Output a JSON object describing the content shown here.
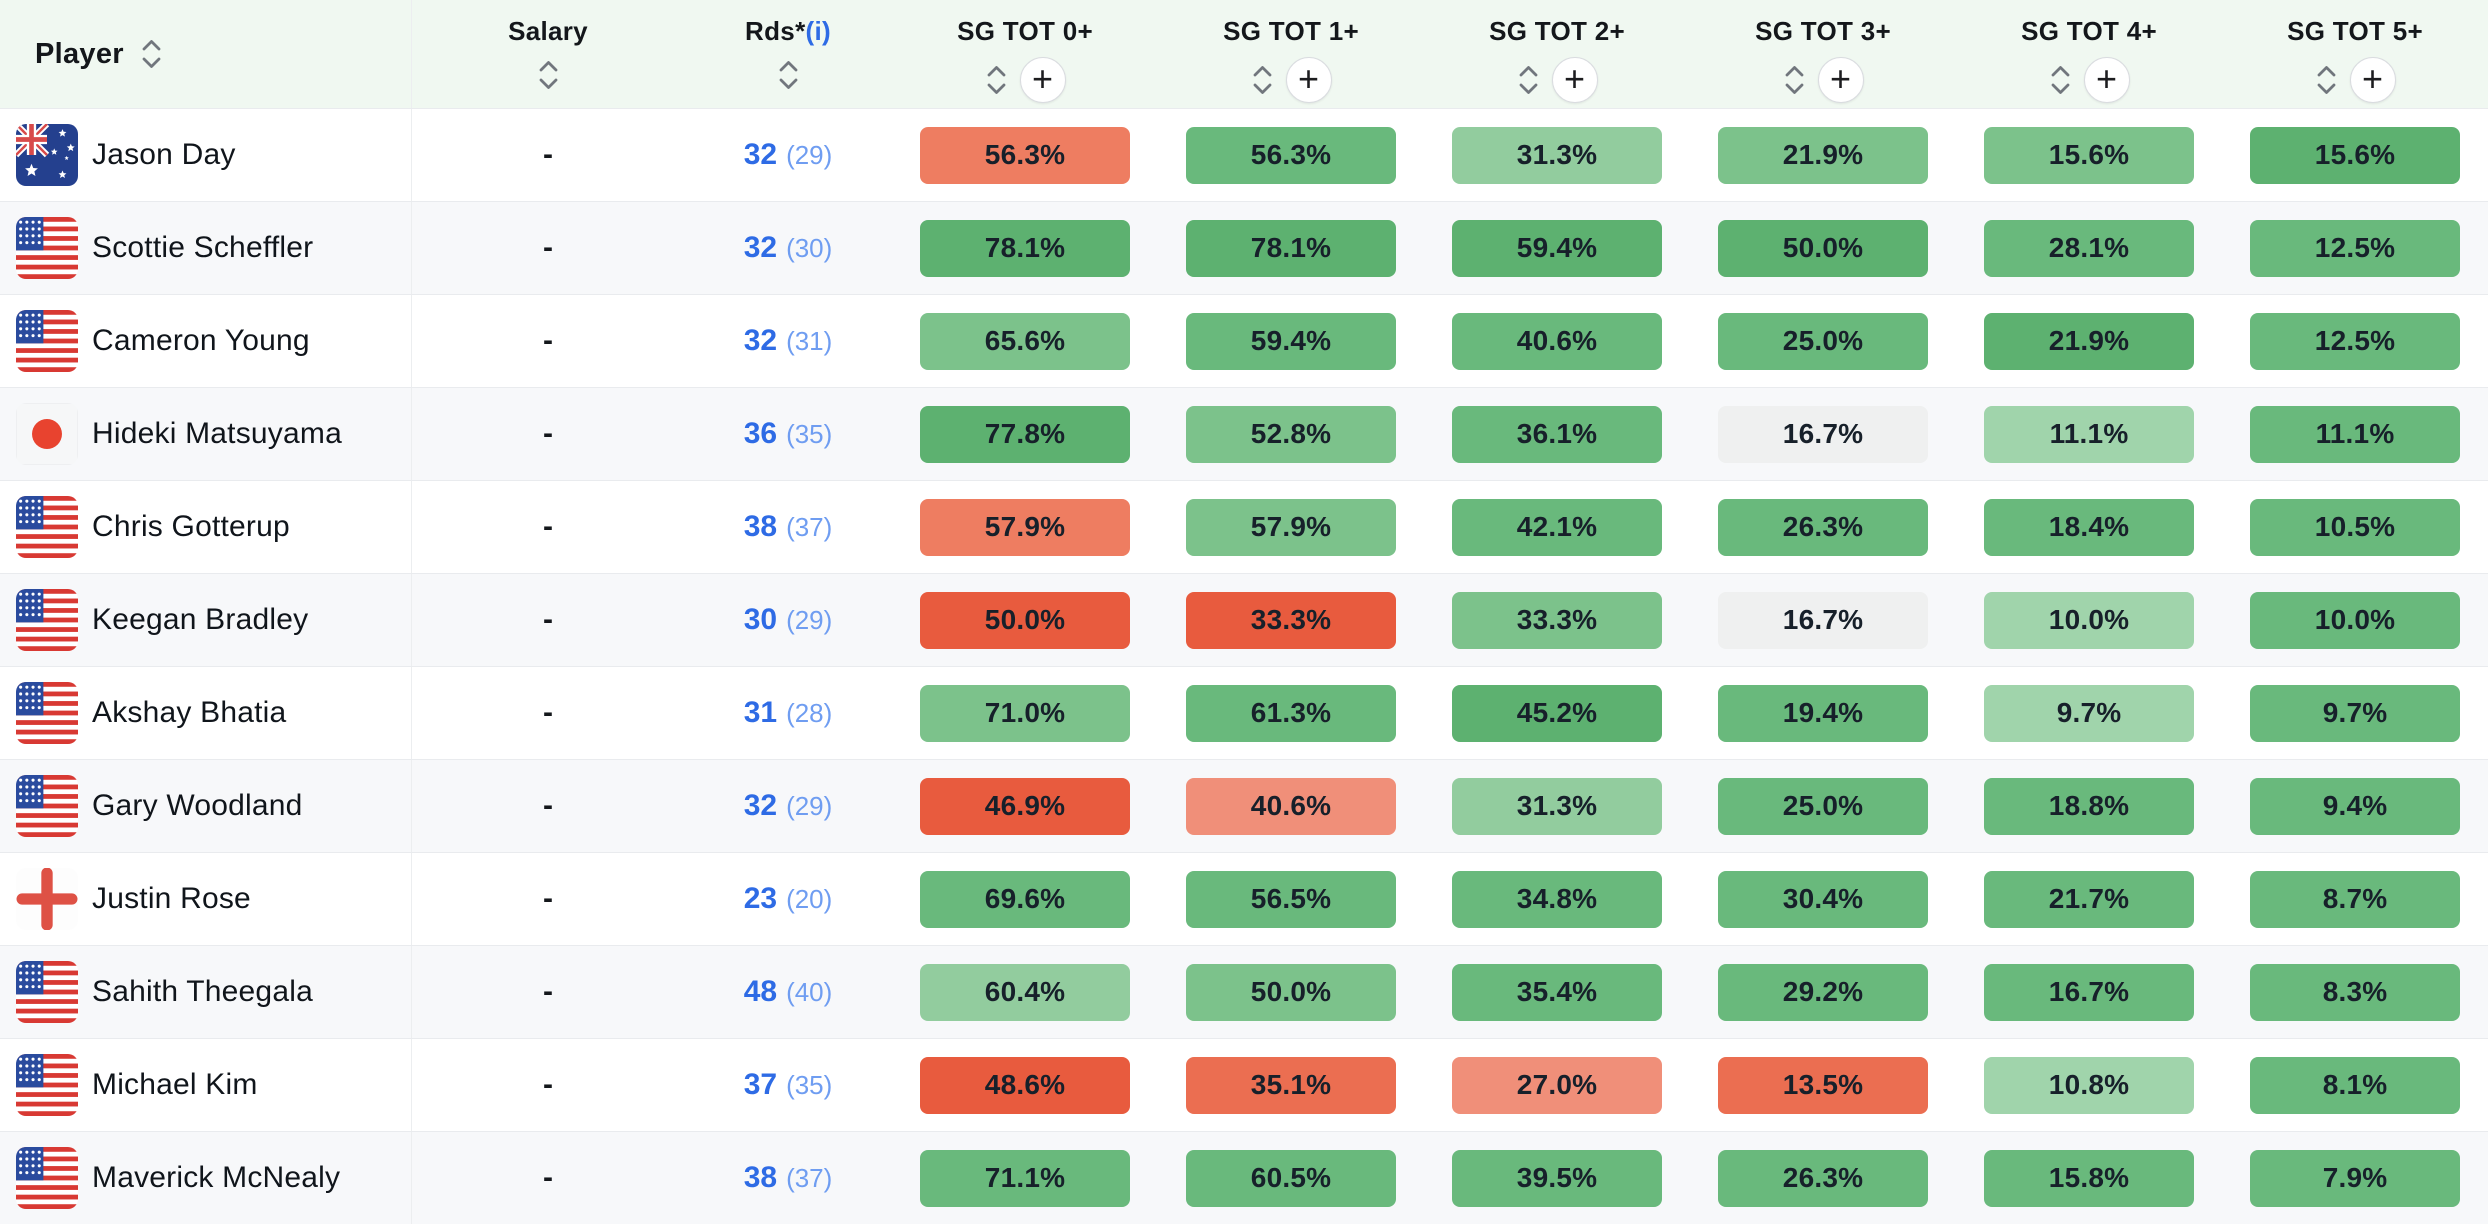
{
  "palette": {
    "red_strong": "#E85B3E",
    "red_med": "#EB6E51",
    "salmon": "#EE7D61",
    "salmon_light": "#F08F79",
    "green_1": "#5DB170",
    "green_2": "#69B97C",
    "green_3": "#7CC28B",
    "green_4": "#92CC9E",
    "green_5": "#A0D4AB",
    "gray": "#EFF0F0"
  },
  "ui_colors": {
    "header_bg": "#F0F8F1",
    "row_bg": "#FFFFFF",
    "row_alt_bg": "#F7F8FA",
    "divider": "#E9EBEE",
    "link_blue": "#2E6BE5",
    "link_blue_light": "#6F9DF1",
    "chip_text": "#17202A"
  },
  "icons": {
    "plus": "+",
    "sort": "sort-arrows"
  },
  "table": {
    "columns": {
      "player": "Player",
      "salary": "Salary",
      "rds": "Rds*",
      "rds_info": "(i)",
      "stats": [
        "SG TOT 0+",
        "SG TOT 1+",
        "SG TOT 2+",
        "SG TOT 3+",
        "SG TOT 4+",
        "SG TOT 5+"
      ]
    },
    "rows": [
      {
        "player": "Jason Day",
        "flag": "australia",
        "salary": "-",
        "rounds": "32",
        "rounds_alt": "(29)",
        "cells": [
          {
            "value": "56.3%",
            "tone": "salmon"
          },
          {
            "value": "56.3%",
            "tone": "green_2"
          },
          {
            "value": "31.3%",
            "tone": "green_4"
          },
          {
            "value": "21.9%",
            "tone": "green_3"
          },
          {
            "value": "15.6%",
            "tone": "green_3"
          },
          {
            "value": "15.6%",
            "tone": "green_1"
          }
        ]
      },
      {
        "player": "Scottie Scheffler",
        "flag": "usa",
        "salary": "-",
        "rounds": "32",
        "rounds_alt": "(30)",
        "cells": [
          {
            "value": "78.1%",
            "tone": "green_1"
          },
          {
            "value": "78.1%",
            "tone": "green_1"
          },
          {
            "value": "59.4%",
            "tone": "green_1"
          },
          {
            "value": "50.0%",
            "tone": "green_1"
          },
          {
            "value": "28.1%",
            "tone": "green_2"
          },
          {
            "value": "12.5%",
            "tone": "green_2"
          }
        ]
      },
      {
        "player": "Cameron Young",
        "flag": "usa",
        "salary": "-",
        "rounds": "32",
        "rounds_alt": "(31)",
        "cells": [
          {
            "value": "65.6%",
            "tone": "green_3"
          },
          {
            "value": "59.4%",
            "tone": "green_2"
          },
          {
            "value": "40.6%",
            "tone": "green_2"
          },
          {
            "value": "25.0%",
            "tone": "green_2"
          },
          {
            "value": "21.9%",
            "tone": "green_1"
          },
          {
            "value": "12.5%",
            "tone": "green_2"
          }
        ]
      },
      {
        "player": "Hideki Matsuyama",
        "flag": "japan",
        "salary": "-",
        "rounds": "36",
        "rounds_alt": "(35)",
        "cells": [
          {
            "value": "77.8%",
            "tone": "green_1"
          },
          {
            "value": "52.8%",
            "tone": "green_3"
          },
          {
            "value": "36.1%",
            "tone": "green_2"
          },
          {
            "value": "16.7%",
            "tone": "gray"
          },
          {
            "value": "11.1%",
            "tone": "green_5"
          },
          {
            "value": "11.1%",
            "tone": "green_2"
          }
        ]
      },
      {
        "player": "Chris Gotterup",
        "flag": "usa",
        "salary": "-",
        "rounds": "38",
        "rounds_alt": "(37)",
        "cells": [
          {
            "value": "57.9%",
            "tone": "salmon"
          },
          {
            "value": "57.9%",
            "tone": "green_3"
          },
          {
            "value": "42.1%",
            "tone": "green_2"
          },
          {
            "value": "26.3%",
            "tone": "green_2"
          },
          {
            "value": "18.4%",
            "tone": "green_2"
          },
          {
            "value": "10.5%",
            "tone": "green_2"
          }
        ]
      },
      {
        "player": "Keegan Bradley",
        "flag": "usa",
        "salary": "-",
        "rounds": "30",
        "rounds_alt": "(29)",
        "cells": [
          {
            "value": "50.0%",
            "tone": "red_strong"
          },
          {
            "value": "33.3%",
            "tone": "red_strong"
          },
          {
            "value": "33.3%",
            "tone": "green_3"
          },
          {
            "value": "16.7%",
            "tone": "gray"
          },
          {
            "value": "10.0%",
            "tone": "green_5"
          },
          {
            "value": "10.0%",
            "tone": "green_2"
          }
        ]
      },
      {
        "player": "Akshay Bhatia",
        "flag": "usa",
        "salary": "-",
        "rounds": "31",
        "rounds_alt": "(28)",
        "cells": [
          {
            "value": "71.0%",
            "tone": "green_3"
          },
          {
            "value": "61.3%",
            "tone": "green_2"
          },
          {
            "value": "45.2%",
            "tone": "green_1"
          },
          {
            "value": "19.4%",
            "tone": "green_2"
          },
          {
            "value": "9.7%",
            "tone": "green_5"
          },
          {
            "value": "9.7%",
            "tone": "green_2"
          }
        ]
      },
      {
        "player": "Gary Woodland",
        "flag": "usa",
        "salary": "-",
        "rounds": "32",
        "rounds_alt": "(29)",
        "cells": [
          {
            "value": "46.9%",
            "tone": "red_strong"
          },
          {
            "value": "40.6%",
            "tone": "salmon_light"
          },
          {
            "value": "31.3%",
            "tone": "green_4"
          },
          {
            "value": "25.0%",
            "tone": "green_2"
          },
          {
            "value": "18.8%",
            "tone": "green_2"
          },
          {
            "value": "9.4%",
            "tone": "green_2"
          }
        ]
      },
      {
        "player": "Justin Rose",
        "flag": "england",
        "salary": "-",
        "rounds": "23",
        "rounds_alt": "(20)",
        "cells": [
          {
            "value": "69.6%",
            "tone": "green_2"
          },
          {
            "value": "56.5%",
            "tone": "green_2"
          },
          {
            "value": "34.8%",
            "tone": "green_2"
          },
          {
            "value": "30.4%",
            "tone": "green_2"
          },
          {
            "value": "21.7%",
            "tone": "green_2"
          },
          {
            "value": "8.7%",
            "tone": "green_2"
          }
        ]
      },
      {
        "player": "Sahith Theegala",
        "flag": "usa",
        "salary": "-",
        "rounds": "48",
        "rounds_alt": "(40)",
        "cells": [
          {
            "value": "60.4%",
            "tone": "green_4"
          },
          {
            "value": "50.0%",
            "tone": "green_3"
          },
          {
            "value": "35.4%",
            "tone": "green_2"
          },
          {
            "value": "29.2%",
            "tone": "green_2"
          },
          {
            "value": "16.7%",
            "tone": "green_2"
          },
          {
            "value": "8.3%",
            "tone": "green_2"
          }
        ]
      },
      {
        "player": "Michael Kim",
        "flag": "usa",
        "salary": "-",
        "rounds": "37",
        "rounds_alt": "(35)",
        "cells": [
          {
            "value": "48.6%",
            "tone": "red_strong"
          },
          {
            "value": "35.1%",
            "tone": "red_med"
          },
          {
            "value": "27.0%",
            "tone": "salmon_light"
          },
          {
            "value": "13.5%",
            "tone": "red_med"
          },
          {
            "value": "10.8%",
            "tone": "green_5"
          },
          {
            "value": "8.1%",
            "tone": "green_2"
          }
        ]
      },
      {
        "player": "Maverick McNealy",
        "flag": "usa",
        "salary": "-",
        "rounds": "38",
        "rounds_alt": "(37)",
        "cells": [
          {
            "value": "71.1%",
            "tone": "green_2"
          },
          {
            "value": "60.5%",
            "tone": "green_2"
          },
          {
            "value": "39.5%",
            "tone": "green_2"
          },
          {
            "value": "26.3%",
            "tone": "green_2"
          },
          {
            "value": "15.8%",
            "tone": "green_2"
          },
          {
            "value": "7.9%",
            "tone": "green_2"
          }
        ]
      }
    ]
  }
}
